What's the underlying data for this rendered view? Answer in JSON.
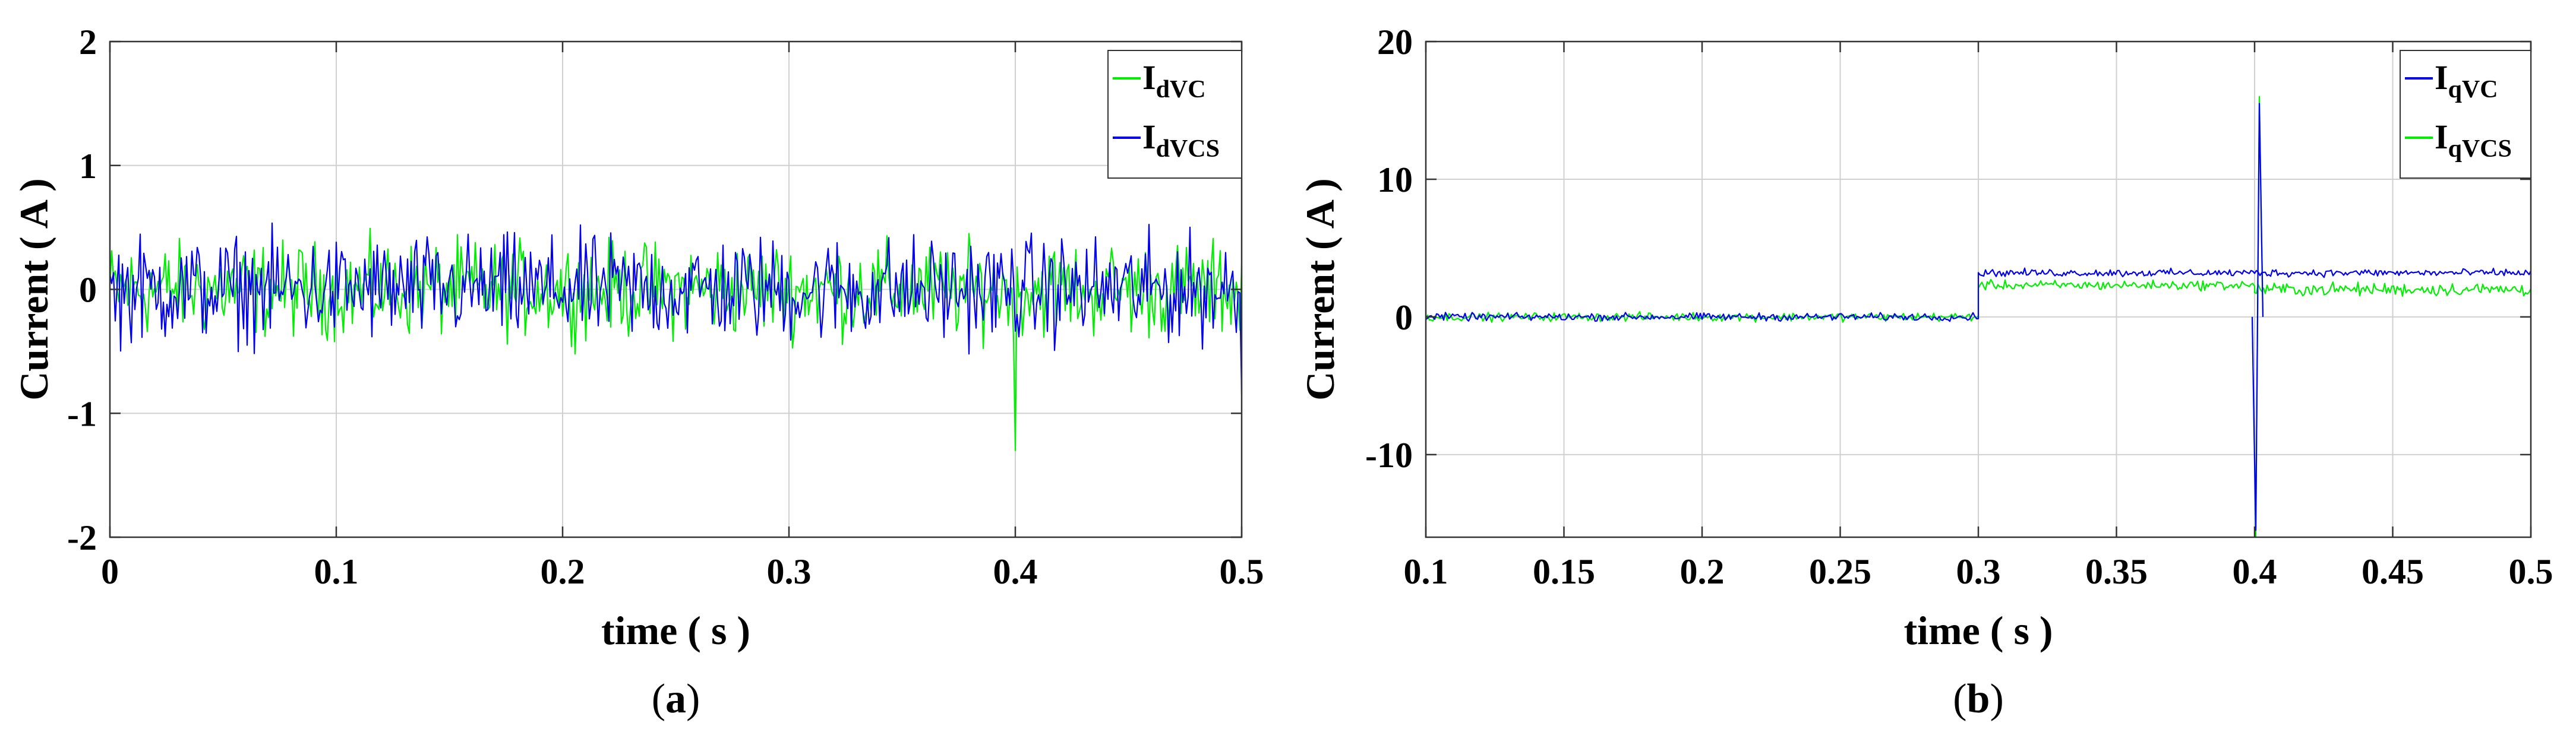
{
  "chart_data": [
    {
      "type": "line",
      "panel_label": "a",
      "xlabel": "time ( s )",
      "ylabel": "Current ( A )",
      "xlim": [
        0,
        0.5
      ],
      "ylim": [
        -2,
        2
      ],
      "xticks": [
        0,
        0.1,
        0.2,
        0.3,
        0.4,
        0.5
      ],
      "xtick_labels": [
        "0",
        "0.1",
        "0.2",
        "0.3",
        "0.4",
        "0.5"
      ],
      "yticks": [
        -2,
        -1,
        0,
        1,
        2
      ],
      "ytick_labels": [
        "-2",
        "-1",
        "0",
        "1",
        "2"
      ],
      "grid": true,
      "legend_position": "top-right",
      "series": [
        {
          "name": "I_dVC",
          "legend_main": "I",
          "legend_sub": "dVC",
          "color": "#00ee00",
          "mean": 0.0,
          "amplitude": 0.55,
          "events": [
            {
              "x": 0.4,
              "y": -1.3
            }
          ],
          "x_range": [
            0,
            0.5
          ]
        },
        {
          "name": "I_dVCS",
          "legend_main": "I",
          "legend_sub": "dVCS",
          "color": "#0000ee",
          "mean": 0.0,
          "amplitude": 0.62,
          "events": [
            {
              "x": 0.5,
              "y": -0.85
            }
          ],
          "x_range": [
            0,
            0.5
          ]
        }
      ]
    },
    {
      "type": "line",
      "panel_label": "b",
      "xlabel": "time ( s )",
      "ylabel": "Current ( A )",
      "xlim": [
        0.1,
        0.5
      ],
      "ylim": [
        -16,
        20
      ],
      "xticks": [
        0.1,
        0.15,
        0.2,
        0.25,
        0.3,
        0.35,
        0.4,
        0.45,
        0.5
      ],
      "xtick_labels": [
        "0.1",
        "0.15",
        "0.2",
        "0.25",
        "0.3",
        "0.35",
        "0.4",
        "0.45",
        "0.5"
      ],
      "yticks": [
        -10,
        0,
        10,
        20
      ],
      "ytick_labels": [
        "-10",
        "0",
        "10",
        "20"
      ],
      "grid": true,
      "legend_position": "top-right",
      "series": [
        {
          "name": "I_qVC",
          "legend_main": "I",
          "legend_sub": "qVC",
          "color": "#0000ee",
          "segments": [
            {
              "x": [
                0.1,
                0.3
              ],
              "mean": 0.0,
              "amplitude": 0.4
            },
            {
              "x": [
                0.3,
                0.5
              ],
              "mean": 3.2,
              "amplitude": 0.4
            }
          ],
          "events": [
            {
              "x": 0.4,
              "y_min": -15.5,
              "y_max": 15.5
            }
          ]
        },
        {
          "name": "I_qVCS",
          "legend_main": "I",
          "legend_sub": "qVCS",
          "color": "#00ee00",
          "segments": [
            {
              "x": [
                0.1,
                0.3
              ],
              "mean": 0.0,
              "amplitude": 0.45
            },
            {
              "x": [
                0.3,
                0.4
              ],
              "mean": 2.3,
              "amplitude": 0.5
            },
            {
              "x": [
                0.4,
                0.5
              ],
              "mean": 2.0,
              "amplitude": 0.7
            }
          ],
          "events": [
            {
              "x": 0.4,
              "y_min": -16,
              "y_max": 16
            }
          ]
        }
      ]
    }
  ]
}
